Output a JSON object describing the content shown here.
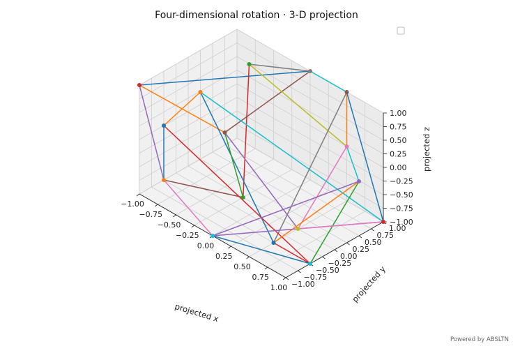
{
  "chart_data": {
    "type": "line",
    "title": "Four-dimensional rotation · 3-D projection",
    "xlabel": "projected x",
    "ylabel": "projected y",
    "zlabel": "projected z",
    "xlim": [
      -1.0,
      1.0
    ],
    "ylim": [
      -1.0,
      1.0
    ],
    "zlim": [
      -1.0,
      1.0
    ],
    "x_ticks": [
      "−1.00",
      "−0.75",
      "−0.50",
      "−0.25",
      "0.00",
      "0.25",
      "0.50",
      "0.75",
      "1.00"
    ],
    "y_ticks": [
      "−1.00",
      "−0.75",
      "−0.50",
      "−0.25",
      "0.00",
      "0.25",
      "0.50",
      "0.75",
      "1.00"
    ],
    "z_ticks": [
      "−1.00",
      "−0.75",
      "−0.50",
      "−0.25",
      "0.00",
      "0.25",
      "0.50",
      "0.75",
      "1.00"
    ],
    "x_tick_values": [
      -1,
      -0.75,
      -0.5,
      -0.25,
      0,
      0.25,
      0.5,
      0.75,
      1
    ],
    "y_tick_values": [
      -1,
      -0.75,
      -0.5,
      -0.25,
      0,
      0.25,
      0.5,
      0.75,
      1
    ],
    "z_tick_values": [
      -1,
      -0.75,
      -0.5,
      -0.25,
      0,
      0.25,
      0.5,
      0.75,
      1
    ],
    "grid": true,
    "legend": "top-right (empty)",
    "vertices": [
      [
        -1.0,
        -1.0,
        1.0
      ],
      [
        0.0,
        1.0,
        1.0
      ],
      [
        0.0,
        -1.0,
        -1.0
      ],
      [
        1.0,
        1.0,
        -1.0
      ],
      [
        -0.5,
        0.5,
        1.0
      ],
      [
        0.5,
        1.0,
        0.0
      ],
      [
        0.5,
        -0.5,
        -1.0
      ],
      [
        -1.0,
        -0.5,
        0.0
      ],
      [
        -0.5,
        -0.5,
        1.0
      ],
      [
        1.0,
        0.5,
        0.0
      ],
      [
        0.5,
        0.0,
        -1.0
      ],
      [
        -1.0,
        -0.5,
        -1.0
      ],
      [
        -0.5,
        0.0,
        0.0
      ],
      [
        0.5,
        1.0,
        1.0
      ],
      [
        1.0,
        -0.5,
        -1.0
      ],
      [
        -0.25,
        0.0,
        -1.0
      ]
    ],
    "vertex_colors": [
      "#d62728",
      "#7f7f7f",
      "#17becf",
      "#d62728",
      "#2ca02c",
      "#e377c2",
      "#1f77b4",
      "#1f77b4",
      "#ff7f0e",
      "#9467bd",
      "#bcbd22",
      "#ff7f0e",
      "#8c564b",
      "#8c564b",
      "#17becf",
      "#2ca02c"
    ],
    "edges": [
      {
        "from": 0,
        "to": 1,
        "color": "#1f77b4"
      },
      {
        "from": 0,
        "to": 12,
        "color": "#ff7f0e"
      },
      {
        "from": 0,
        "to": 11,
        "color": "#9467bd"
      },
      {
        "from": 1,
        "to": 13,
        "color": "#17becf"
      },
      {
        "from": 1,
        "to": 4,
        "color": "#7f7f7f"
      },
      {
        "from": 1,
        "to": 12,
        "color": "#8c564b"
      },
      {
        "from": 4,
        "to": 5,
        "color": "#bcbd22"
      },
      {
        "from": 4,
        "to": 15,
        "color": "#d62728"
      },
      {
        "from": 5,
        "to": 13,
        "color": "#ff7f0e"
      },
      {
        "from": 5,
        "to": 9,
        "color": "#17becf"
      },
      {
        "from": 5,
        "to": 10,
        "color": "#e377c2"
      },
      {
        "from": 8,
        "to": 3,
        "color": "#17becf"
      },
      {
        "from": 8,
        "to": 7,
        "color": "#ff7f0e"
      },
      {
        "from": 8,
        "to": 6,
        "color": "#1f77b4"
      },
      {
        "from": 13,
        "to": 3,
        "color": "#1f77b4"
      },
      {
        "from": 13,
        "to": 6,
        "color": "#7f7f7f"
      },
      {
        "from": 12,
        "to": 15,
        "color": "#2ca02c"
      },
      {
        "from": 12,
        "to": 10,
        "color": "#9467bd"
      },
      {
        "from": 15,
        "to": 11,
        "color": "#8c564b"
      },
      {
        "from": 11,
        "to": 2,
        "color": "#e377c2"
      },
      {
        "from": 11,
        "to": 7,
        "color": "#1f77b4"
      },
      {
        "from": 7,
        "to": 14,
        "color": "#d62728"
      },
      {
        "from": 6,
        "to": 14,
        "color": "#d62728"
      },
      {
        "from": 6,
        "to": 9,
        "color": "#ff7f0e"
      },
      {
        "from": 14,
        "to": 2,
        "color": "#1f77b4"
      },
      {
        "from": 14,
        "to": 9,
        "color": "#2ca02c"
      },
      {
        "from": 9,
        "to": 2,
        "color": "#9467bd"
      },
      {
        "from": 3,
        "to": 2,
        "color": "#9467bd"
      },
      {
        "from": 10,
        "to": 3,
        "color": "#e377c2"
      }
    ]
  },
  "footer": "Powered by ABSLTN"
}
